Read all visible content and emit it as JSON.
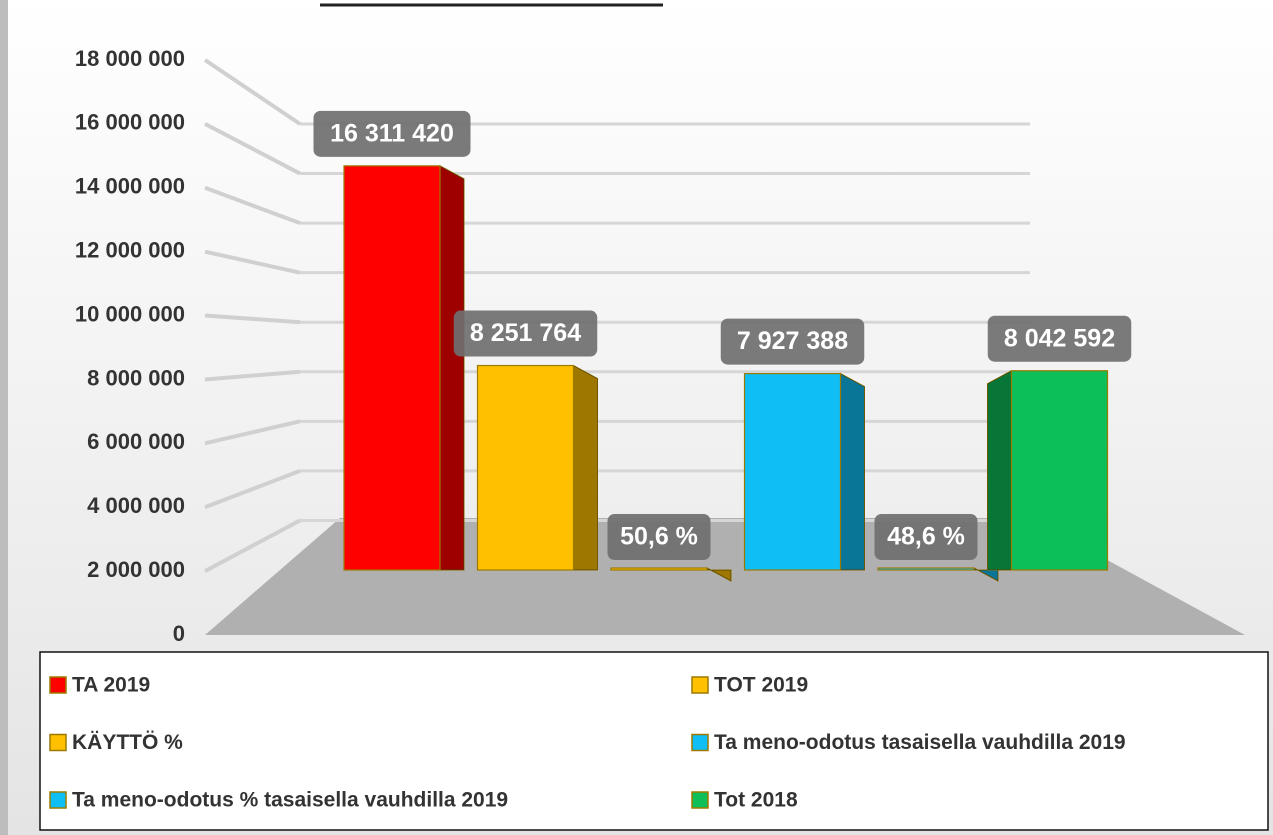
{
  "chart_data": {
    "type": "bar3d",
    "categories": [
      null
    ],
    "series": [
      {
        "name": "TA 2019",
        "color": "#ff0000",
        "values": [
          16311420
        ],
        "value_labels": [
          "16 311 420"
        ]
      },
      {
        "name": "TOT 2019",
        "color": "#ffc000",
        "values": [
          8251764
        ],
        "value_labels": [
          "8 251 764"
        ]
      },
      {
        "name": "KÄYTTÖ %",
        "color": "#ffc000",
        "values": [
          50.6
        ],
        "value_labels": [
          "50,6 %"
        ]
      },
      {
        "name": "Ta meno-odotus tasaisella vauhdilla 2019",
        "color": "#0fbef5",
        "values": [
          7927388
        ],
        "value_labels": [
          "7 927 388"
        ]
      },
      {
        "name": "Ta meno-odotus % tasaisella vauhdilla 2019",
        "color": "#0fbef5",
        "values": [
          48.6
        ],
        "value_labels": [
          "48,6 %"
        ]
      },
      {
        "name": "Tot 2018",
        "color": "#0cbf58",
        "values": [
          8042592
        ],
        "value_labels": [
          "8 042 592"
        ]
      }
    ],
    "ylim": [
      0,
      18000000
    ],
    "yticks": [
      0,
      {
        "value": 2000000,
        "label": "2 000 000"
      },
      {
        "value": 4000000,
        "label": "4 000 000"
      },
      {
        "value": 6000000,
        "label": "6 000 000"
      },
      {
        "value": 8000000,
        "label": "8 000 000"
      },
      {
        "value": 10000000,
        "label": "10 000 000"
      },
      {
        "value": 12000000,
        "label": "12 000 000"
      },
      {
        "value": 14000000,
        "label": "14 000 000"
      },
      {
        "value": 16000000,
        "label": "16 000 000"
      },
      {
        "value": 18000000,
        "label": "18 000 000"
      }
    ],
    "grid": true,
    "legend": "bottom"
  }
}
